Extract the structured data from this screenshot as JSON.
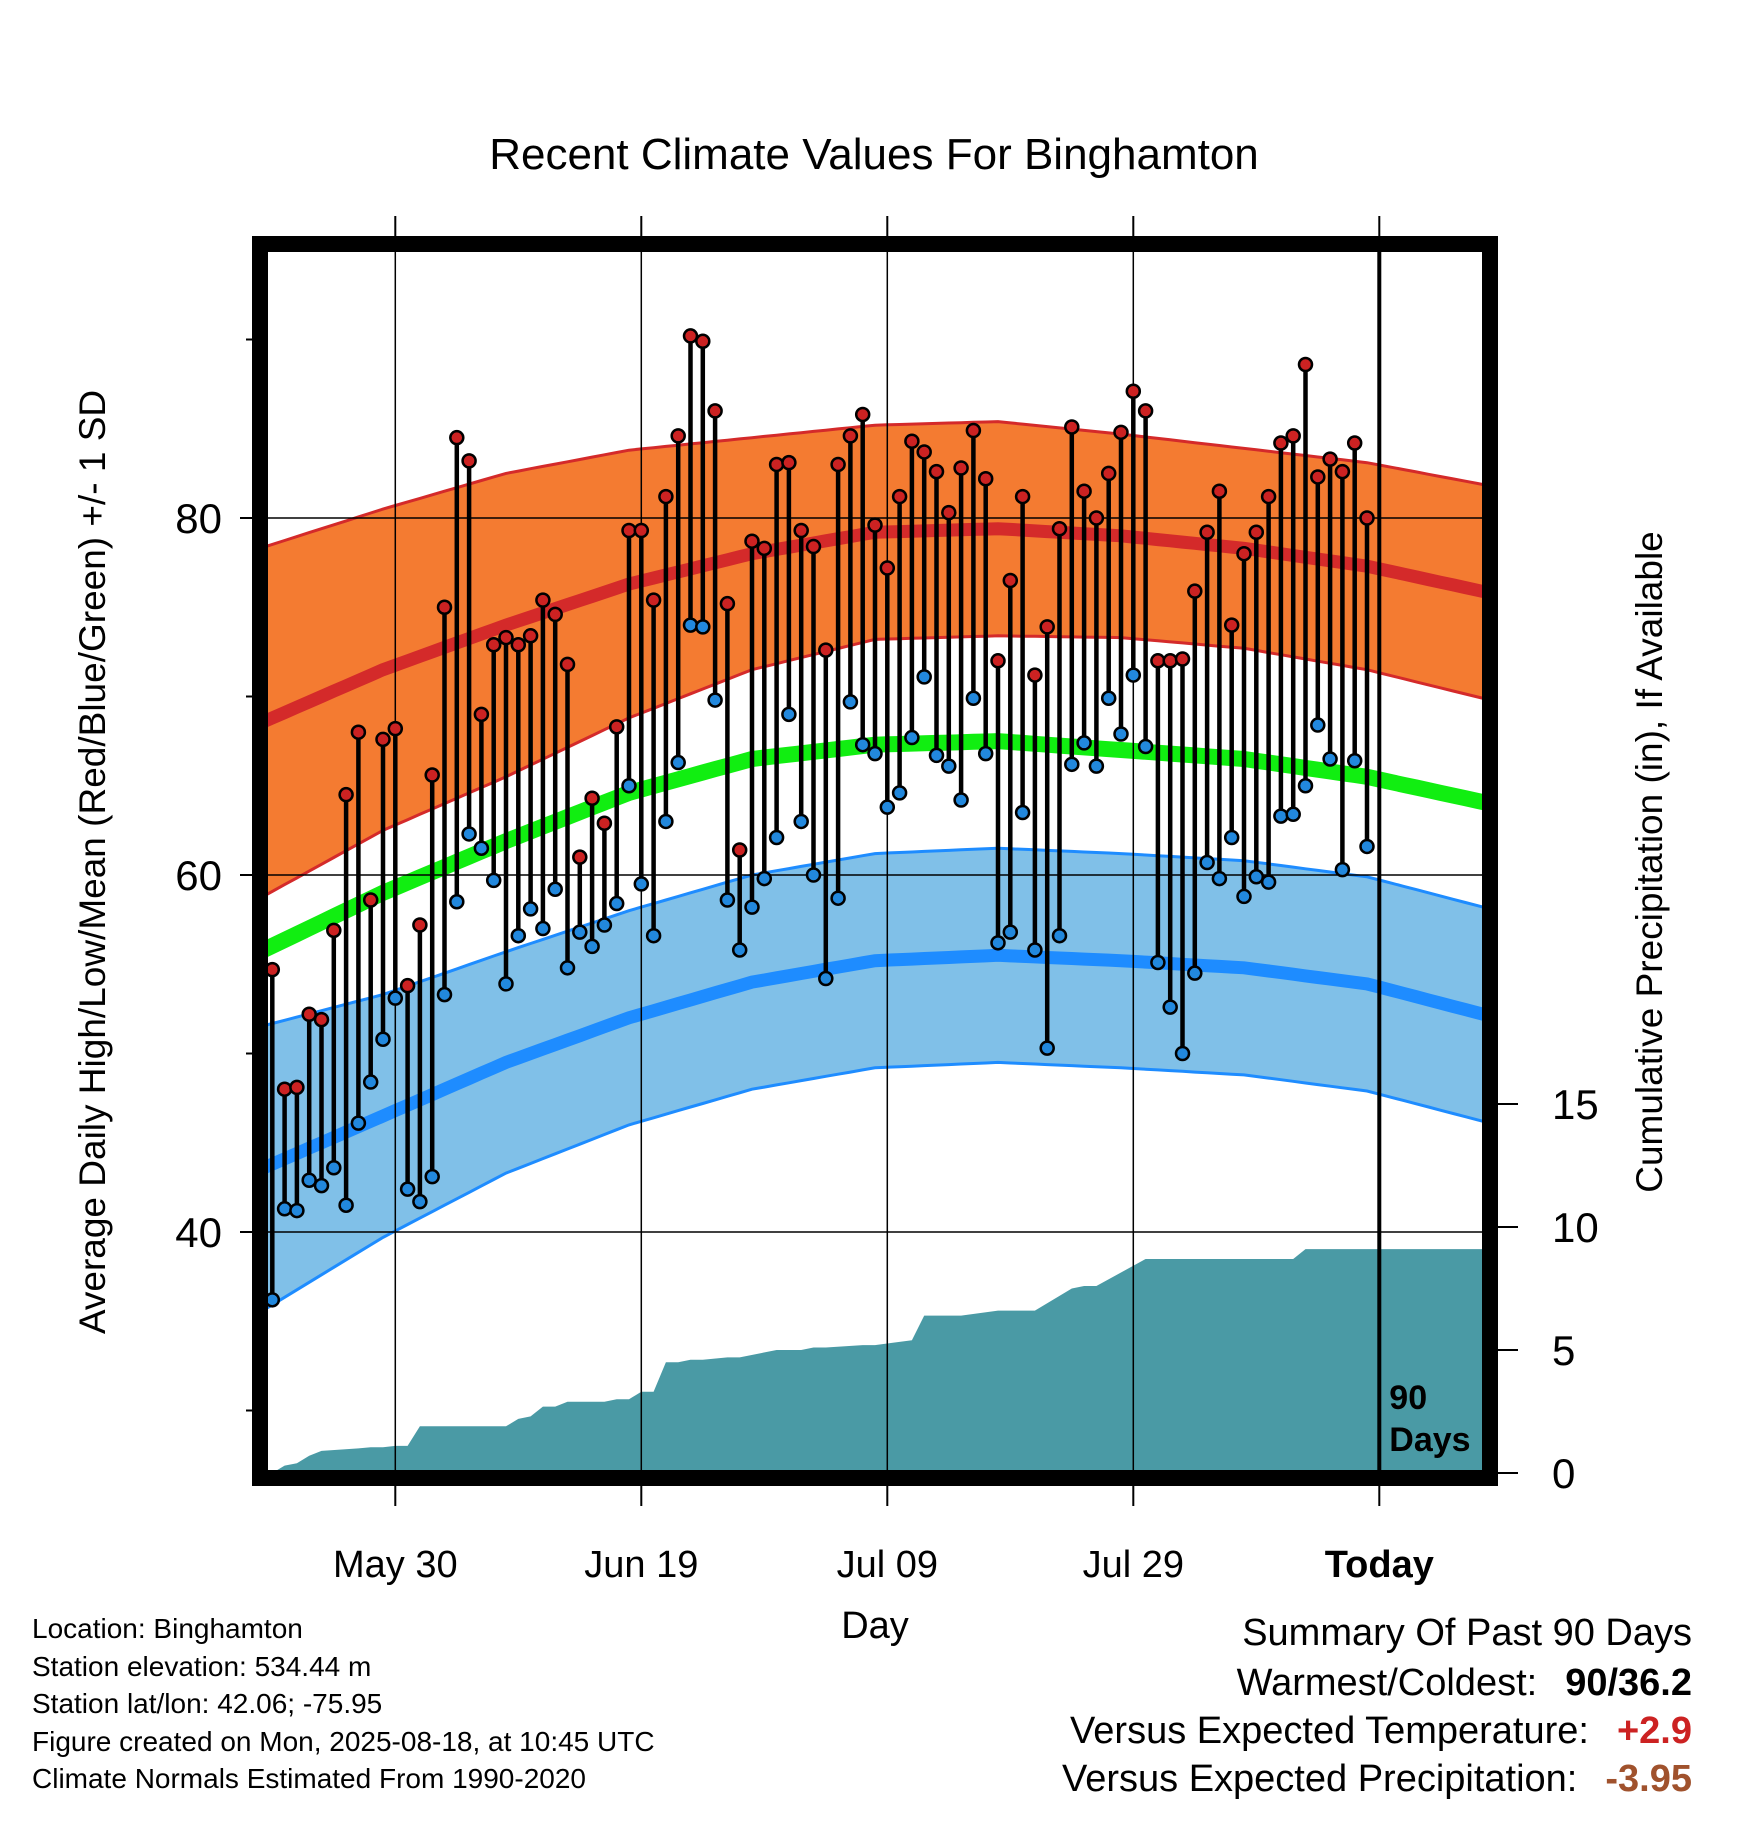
{
  "title": "Recent Climate Values For Binghamton",
  "colors": {
    "high_band": "#f47b31",
    "high_mean": "#d42a2a",
    "low_band": "#80c0e8",
    "low_mean": "#1e8cff",
    "overall_mean": "#11ee11",
    "precip": "#4a9aa5",
    "high_point": "#cc2222",
    "low_point": "#2288dd",
    "plus_value": "#cc2222",
    "minus_value": "#a0522d"
  },
  "chart_data": {
    "type": "line",
    "title": "Recent Climate Values For Binghamton",
    "xlabel": "Day",
    "ylabel": "Average Daily High/Low/Mean (Red/Blue/Green) +/- 1 SD",
    "y2label": "Cumulative Precipitation (in), If Available",
    "ylim": [
      26,
      95
    ],
    "y_ticks": [
      40,
      60,
      80
    ],
    "y2_ticks": [
      0,
      5,
      10,
      15
    ],
    "x_ticks": [
      "May 30",
      "Jun 19",
      "Jul 09",
      "Jul 29",
      "Today"
    ],
    "x_tick_days": [
      11,
      31,
      51,
      71,
      91
    ],
    "grid": true,
    "today_label": "90 Days",
    "normals": {
      "days": [
        0,
        10,
        20,
        30,
        40,
        50,
        60,
        70,
        80,
        90,
        100
      ],
      "high_mean": [
        68.5,
        71.5,
        74.0,
        76.3,
        78.0,
        79.2,
        79.4,
        79.0,
        78.3,
        77.3,
        75.8
      ],
      "high_sd": [
        9.8,
        9.0,
        8.5,
        7.5,
        6.5,
        6.0,
        6.0,
        5.7,
        5.6,
        5.8,
        6.0
      ],
      "low_mean": [
        43.5,
        46.5,
        49.5,
        52.0,
        54.0,
        55.2,
        55.5,
        55.2,
        54.8,
        53.9,
        52.1
      ],
      "low_sd": [
        8.0,
        6.8,
        6.2,
        6.0,
        6.0,
        6.0,
        6.0,
        6.0,
        6.0,
        6.0,
        6.0
      ],
      "mean": [
        55.7,
        59.0,
        61.9,
        64.6,
        66.5,
        67.3,
        67.5,
        67.0,
        66.5,
        65.5,
        64.0
      ]
    },
    "series": [
      {
        "name": "High",
        "values": [
          54.7,
          48.0,
          48.1,
          52.2,
          51.9,
          56.9,
          64.5,
          68.0,
          58.6,
          67.6,
          68.2,
          53.8,
          57.2,
          65.6,
          75.0,
          84.5,
          83.2,
          69.0,
          72.9,
          73.3,
          72.9,
          73.4,
          75.4,
          74.6,
          71.8,
          61.0,
          64.3,
          62.9,
          68.3,
          79.3,
          79.3,
          75.4,
          81.2,
          84.6,
          90.2,
          89.9,
          86.0,
          75.2,
          61.4,
          78.7,
          78.3,
          83.0,
          83.1,
          79.3,
          78.4,
          72.6,
          83.0,
          84.6,
          85.8,
          79.6,
          77.2,
          81.2,
          84.3,
          83.7,
          82.6,
          80.3,
          82.8,
          84.9,
          82.2,
          72.0,
          76.5,
          81.2,
          71.2,
          73.9,
          79.4,
          85.1,
          81.5,
          80.0,
          82.5,
          84.8,
          87.1,
          86.0,
          72.0,
          72.0,
          72.1,
          75.9,
          79.2,
          81.5,
          74.0,
          78.0,
          79.2,
          81.2,
          84.2,
          84.6,
          88.6,
          82.3,
          83.3,
          82.6,
          84.2,
          80.0
        ]
      },
      {
        "name": "Low",
        "values": [
          36.2,
          41.3,
          41.2,
          42.9,
          42.6,
          43.6,
          41.5,
          46.1,
          48.4,
          50.8,
          53.1,
          42.4,
          41.7,
          43.1,
          53.3,
          58.5,
          62.3,
          61.5,
          59.7,
          53.9,
          56.6,
          58.1,
          57.0,
          59.2,
          54.8,
          56.8,
          56.0,
          57.2,
          58.4,
          65.0,
          59.5,
          56.6,
          63.0,
          66.3,
          74.0,
          73.9,
          69.8,
          58.6,
          55.8,
          58.2,
          59.8,
          62.1,
          69.0,
          63.0,
          60.0,
          54.2,
          58.7,
          69.7,
          67.3,
          66.8,
          63.8,
          64.6,
          67.7,
          71.1,
          66.7,
          66.1,
          64.2,
          69.9,
          66.8,
          56.2,
          56.8,
          63.5,
          55.8,
          50.3,
          56.6,
          66.2,
          67.4,
          66.1,
          69.9,
          67.9,
          71.2,
          67.2,
          55.1,
          52.6,
          50.0,
          54.5,
          60.7,
          59.8,
          62.1,
          58.8,
          59.9,
          59.6,
          63.3,
          63.4,
          65.0,
          68.4,
          66.5,
          60.3,
          66.4,
          61.6
        ]
      }
    ],
    "precip_cumulative_days": [
      1,
      2,
      3,
      4,
      5,
      8,
      9,
      10,
      11,
      12,
      13,
      20,
      21,
      22,
      23,
      24,
      25,
      28,
      29,
      30,
      31,
      32,
      33,
      34,
      35,
      36,
      38,
      39,
      42,
      43,
      44,
      45,
      46,
      49,
      50,
      53,
      54,
      55,
      56,
      57,
      60,
      63,
      66,
      67,
      68,
      72,
      73,
      74,
      84,
      85,
      86,
      100
    ],
    "precip_cumulative": [
      0.0,
      0.3,
      0.4,
      0.7,
      0.9,
      1.0,
      1.05,
      1.05,
      1.1,
      1.1,
      1.9,
      1.9,
      2.2,
      2.3,
      2.7,
      2.7,
      2.9,
      2.9,
      3.0,
      3.0,
      3.3,
      3.3,
      4.5,
      4.5,
      4.6,
      4.6,
      4.7,
      4.7,
      5.0,
      5.0,
      5.0,
      5.1,
      5.1,
      5.2,
      5.2,
      5.4,
      6.4,
      6.4,
      6.4,
      6.4,
      6.6,
      6.6,
      7.5,
      7.6,
      7.6,
      8.7,
      8.7,
      8.7,
      8.7,
      9.1,
      9.1,
      9.1
    ],
    "annotations": [
      "Location: Binghamton",
      "Station elevation: 534.44 m",
      "Station lat/lon: 42.06; -75.95",
      "Figure created on Mon, 2025-08-18, at 10:45 UTC",
      "Climate Normals Estimated From 1990-2020"
    ],
    "summary": {
      "heading": "Summary Of Past 90 Days",
      "warmest_coldest": "90/36.2",
      "temp_departure": "+2.9",
      "precip_departure": "-3.95"
    }
  },
  "footer": {
    "location": "Location: Binghamton",
    "elevation": "Station elevation: 534.44 m",
    "latlon": "Station lat/lon: 42.06; -75.95",
    "created": "Figure created on Mon, 2025-08-18, at 10:45 UTC",
    "normals": "Climate Normals Estimated From 1990-2020"
  },
  "summary": {
    "heading": "Summary Of Past 90 Days",
    "warmest_label": "Warmest/Coldest:",
    "warmest_value": "90/36.2",
    "temp_label": "Versus Expected Temperature:",
    "temp_value": "+2.9",
    "precip_label": "Versus Expected Precipitation:",
    "precip_value": "-3.95"
  }
}
